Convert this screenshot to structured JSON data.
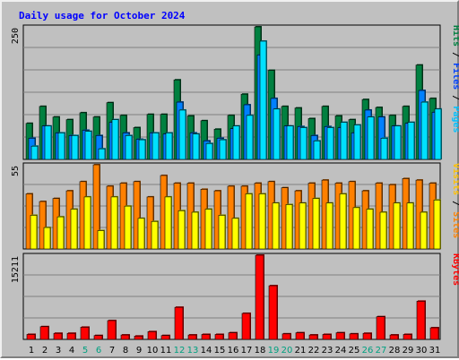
{
  "chart_data": {
    "type": "bar",
    "title": "Daily usage for October 2024",
    "categories": [
      "1",
      "2",
      "3",
      "4",
      "5",
      "6",
      "7",
      "8",
      "9",
      "10",
      "11",
      "12",
      "13",
      "14",
      "15",
      "16",
      "17",
      "18",
      "19",
      "20",
      "21",
      "22",
      "23",
      "24",
      "25",
      "26",
      "27",
      "28",
      "29",
      "30",
      "31"
    ],
    "weekend_days": [
      "5",
      "6",
      "12",
      "13",
      "19",
      "20",
      "26",
      "27"
    ],
    "panels": [
      {
        "name": "hits-files-pages",
        "max_label": "250",
        "ylim": [
          0,
          250
        ],
        "axis_labels": [
          {
            "text": "Hits",
            "color": "#008040"
          },
          {
            "text": "Files",
            "color": "#0040ff"
          },
          {
            "text": "Pages",
            "color": "#00c0ff"
          }
        ],
        "series": [
          {
            "name": "Hits",
            "color": "#008040",
            "values": [
              68,
              100,
              80,
              75,
              88,
              80,
              107,
              83,
              60,
              85,
              85,
              150,
              82,
              73,
              57,
              83,
              123,
              250,
              168,
              100,
              97,
              77,
              100,
              82,
              75,
              113,
              98,
              83,
              100,
              178,
              115
            ]
          },
          {
            "name": "Files",
            "color": "#0080ff",
            "values": [
              40,
              63,
              50,
              45,
              55,
              45,
              70,
              50,
              38,
              50,
              48,
              108,
              50,
              35,
              40,
              58,
              103,
              197,
              115,
              63,
              62,
              45,
              62,
              60,
              50,
              93,
              80,
              63,
              68,
              130,
              89
            ]
          },
          {
            "name": "Pages",
            "color": "#00e0ff",
            "values": [
              25,
              63,
              50,
              45,
              53,
              20,
              75,
              45,
              37,
              50,
              50,
              93,
              48,
              30,
              37,
              63,
              83,
              223,
              95,
              63,
              60,
              35,
              60,
              70,
              65,
              80,
              40,
              63,
              70,
              108,
              95
            ]
          }
        ]
      },
      {
        "name": "visits-sites",
        "max_label": "55",
        "ylim": [
          0,
          55
        ],
        "axis_labels": [
          {
            "text": "Visits",
            "color": "#ffc000"
          },
          {
            "text": "Sites",
            "color": "#ff8000"
          }
        ],
        "series": [
          {
            "name": "Visits",
            "color": "#ff8000",
            "values": [
              36,
              31,
              33,
              38,
              44,
              55,
              41,
              43,
              44,
              34,
              48,
              43,
              43,
              39,
              38,
              41,
              41,
              43,
              44,
              40,
              38,
              43,
              45,
              43,
              44,
              38,
              43,
              42,
              46,
              45,
              43
            ]
          },
          {
            "name": "Sites",
            "color": "#ffff00",
            "values": [
              22,
              14,
              21,
              26,
              34,
              12,
              34,
              28,
              20,
              18,
              34,
              25,
              24,
              26,
              22,
              20,
              36,
              36,
              30,
              29,
              30,
              33,
              30,
              36,
              27,
              26,
              24,
              30,
              30,
              24,
              32
            ]
          }
        ]
      },
      {
        "name": "kbytes",
        "max_label": "15211",
        "ylim": [
          0,
          15211
        ],
        "axis_labels": [
          {
            "text": "KBytes",
            "color": "#ff0000"
          }
        ],
        "series": [
          {
            "name": "KBytes",
            "color": "#ff0000",
            "values": [
              900,
              2300,
              1100,
              1100,
              2200,
              700,
              3400,
              800,
              600,
              1400,
              700,
              5800,
              800,
              900,
              900,
              1200,
              4700,
              15211,
              9700,
              1000,
              1200,
              800,
              900,
              1200,
              1000,
              1100,
              4100,
              800,
              900,
              6900,
              2100
            ]
          }
        ]
      }
    ]
  },
  "colors": {
    "background": "#c0c0c0",
    "plot_background": "#c0c0c0",
    "gridline": "#808080",
    "title": "#0000ff",
    "weekday_label": "#000000",
    "weekend_label": "#00a080"
  }
}
